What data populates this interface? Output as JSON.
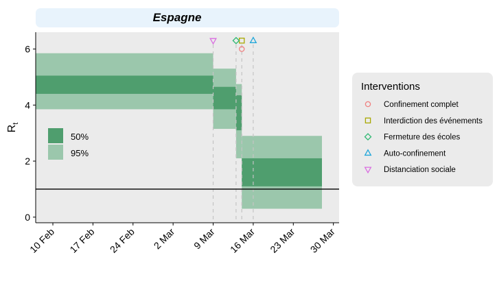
{
  "chart_data": {
    "type": "area",
    "title": "Espagne",
    "ylabel": "R",
    "ylabel_sub": "t",
    "x_ticks": [
      "10 Feb",
      "17 Feb",
      "24 Feb",
      "2 Mar",
      "9 Mar",
      "16 Mar",
      "23 Mar",
      "30 Mar"
    ],
    "x_range": [
      "2020-02-07",
      "2020-03-31"
    ],
    "ylim": [
      -0.2,
      6.6
    ],
    "y_ticks": [
      0,
      2,
      4,
      6
    ],
    "reference_line_y": 1,
    "grid": false,
    "panel_color": "#ebebeb",
    "band_colors": {
      "ci50": "#4f9e6e",
      "ci95": "#9bc7ac"
    },
    "series": [
      {
        "name": "50%",
        "segments": [
          {
            "start": "2020-02-07",
            "end": "2020-03-09",
            "low": 4.4,
            "high": 5.05
          },
          {
            "start": "2020-03-09",
            "end": "2020-03-13",
            "low": 3.85,
            "high": 4.65
          },
          {
            "start": "2020-03-13",
            "end": "2020-03-14",
            "low": 3.1,
            "high": 4.35
          },
          {
            "start": "2020-03-14",
            "end": "2020-03-28",
            "low": 1.1,
            "high": 2.1
          }
        ]
      },
      {
        "name": "95%",
        "segments": [
          {
            "start": "2020-02-07",
            "end": "2020-03-09",
            "low": 3.85,
            "high": 5.85
          },
          {
            "start": "2020-03-09",
            "end": "2020-03-13",
            "low": 3.15,
            "high": 5.3
          },
          {
            "start": "2020-03-13",
            "end": "2020-03-14",
            "low": 2.1,
            "high": 4.75
          },
          {
            "start": "2020-03-14",
            "end": "2020-03-28",
            "low": 0.3,
            "high": 2.9
          }
        ]
      }
    ],
    "band_legend": [
      {
        "label": "50%",
        "key": "ci50"
      },
      {
        "label": "95%",
        "key": "ci95"
      }
    ],
    "interventions_title": "Interventions",
    "interventions": [
      {
        "label": "Confinement complet",
        "date": "2020-03-14",
        "y": 6.0,
        "shape": "circle",
        "color": "#f08080"
      },
      {
        "label": "Interdiction des événements",
        "date": "2020-03-14",
        "y": 6.3,
        "shape": "square",
        "color": "#a8a800"
      },
      {
        "label": "Fermeture des écoles",
        "date": "2020-03-13",
        "y": 6.3,
        "shape": "diamond",
        "color": "#2eb872"
      },
      {
        "label": "Auto-confinement",
        "date": "2020-03-16",
        "y": 6.3,
        "shape": "triangle-up",
        "color": "#1fa6d9"
      },
      {
        "label": "Distanciation sociale",
        "date": "2020-03-09",
        "y": 6.3,
        "shape": "triangle-down",
        "color": "#d96ee0"
      }
    ],
    "intervention_line_dates": [
      "2020-03-09",
      "2020-03-13",
      "2020-03-14",
      "2020-03-16"
    ]
  }
}
